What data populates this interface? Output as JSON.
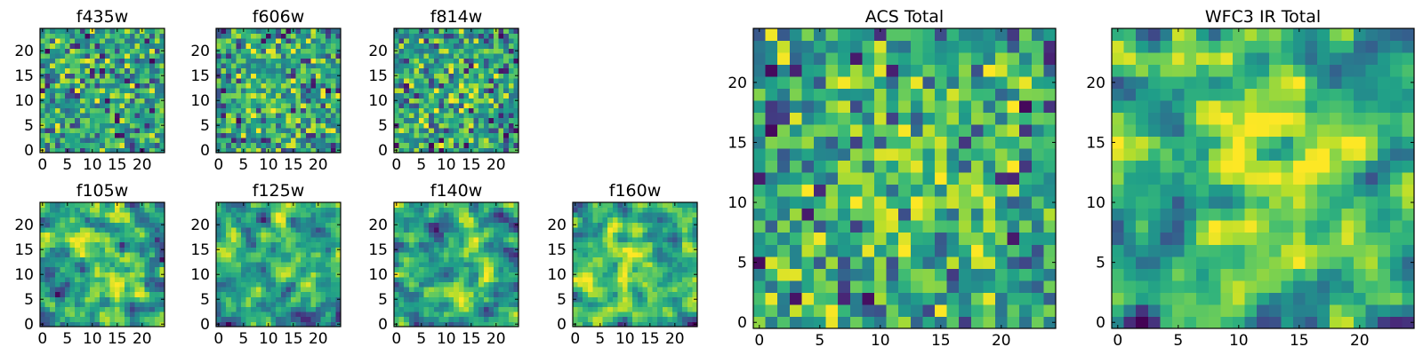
{
  "figure": {
    "colormap": "viridis",
    "colors": {
      "low": "#440154",
      "mid": "#21918c",
      "high": "#fde725",
      "frame": "#000000",
      "background": "#ffffff"
    }
  },
  "chart_data": [
    {
      "type": "heatmap",
      "title": "f435w",
      "grid_size": [
        25,
        25
      ],
      "xlim": [
        -0.5,
        24.5
      ],
      "ylim": [
        -0.5,
        24.5
      ],
      "xticks": [
        0,
        5,
        10,
        15,
        20
      ],
      "yticks": [
        0,
        5,
        10,
        15,
        20
      ],
      "value_range": [
        0,
        1
      ],
      "texture": "noisy",
      "center_brightness": 0.05,
      "seed": 11
    },
    {
      "type": "heatmap",
      "title": "f606w",
      "grid_size": [
        25,
        25
      ],
      "xlim": [
        -0.5,
        24.5
      ],
      "ylim": [
        -0.5,
        24.5
      ],
      "xticks": [
        0,
        5,
        10,
        15,
        20
      ],
      "yticks": [
        0,
        5,
        10,
        15,
        20
      ],
      "value_range": [
        0,
        1
      ],
      "texture": "noisy",
      "center_brightness": 0.1,
      "seed": 23
    },
    {
      "type": "heatmap",
      "title": "f814w",
      "grid_size": [
        25,
        25
      ],
      "xlim": [
        -0.5,
        24.5
      ],
      "ylim": [
        -0.5,
        24.5
      ],
      "xticks": [
        0,
        5,
        10,
        15,
        20
      ],
      "yticks": [
        0,
        5,
        10,
        15,
        20
      ],
      "value_range": [
        0,
        1
      ],
      "texture": "noisy",
      "center_brightness": 0.1,
      "seed": 37
    },
    {
      "type": "heatmap",
      "title": "f105w",
      "grid_size": [
        25,
        25
      ],
      "xlim": [
        -0.5,
        24.5
      ],
      "ylim": [
        -0.5,
        24.5
      ],
      "xticks": [
        0,
        5,
        10,
        15,
        20
      ],
      "yticks": [
        0,
        5,
        10,
        15,
        20
      ],
      "value_range": [
        0,
        1
      ],
      "texture": "smooth",
      "center_brightness": 0.2,
      "seed": 41
    },
    {
      "type": "heatmap",
      "title": "f125w",
      "grid_size": [
        25,
        25
      ],
      "xlim": [
        -0.5,
        24.5
      ],
      "ylim": [
        -0.5,
        24.5
      ],
      "xticks": [
        0,
        5,
        10,
        15,
        20
      ],
      "yticks": [
        0,
        5,
        10,
        15,
        20
      ],
      "value_range": [
        0,
        1
      ],
      "texture": "smooth",
      "center_brightness": 0.12,
      "seed": 53
    },
    {
      "type": "heatmap",
      "title": "f140w",
      "grid_size": [
        25,
        25
      ],
      "xlim": [
        -0.5,
        24.5
      ],
      "ylim": [
        -0.5,
        24.5
      ],
      "xticks": [
        0,
        5,
        10,
        15,
        20
      ],
      "yticks": [
        0,
        5,
        10,
        15,
        20
      ],
      "value_range": [
        0,
        1
      ],
      "texture": "smooth",
      "center_brightness": 0.18,
      "seed": 67
    },
    {
      "type": "heatmap",
      "title": "f160w",
      "grid_size": [
        25,
        25
      ],
      "xlim": [
        -0.5,
        24.5
      ],
      "ylim": [
        -0.5,
        24.5
      ],
      "xticks": [
        0,
        5,
        10,
        15,
        20
      ],
      "yticks": [
        0,
        5,
        10,
        15,
        20
      ],
      "value_range": [
        0,
        1
      ],
      "texture": "smooth",
      "center_brightness": 0.22,
      "seed": 79
    },
    {
      "type": "heatmap",
      "title": "ACS Total",
      "grid_size": [
        25,
        25
      ],
      "xlim": [
        -0.5,
        24.5
      ],
      "ylim": [
        -0.5,
        24.5
      ],
      "xticks": [
        0,
        5,
        10,
        15,
        20
      ],
      "yticks": [
        0,
        5,
        10,
        15,
        20
      ],
      "value_range": [
        0,
        1
      ],
      "texture": "noisy",
      "center_brightness": 0.2,
      "seed": 97
    },
    {
      "type": "heatmap",
      "title": "WFC3 IR Total",
      "grid_size": [
        25,
        25
      ],
      "xlim": [
        -0.5,
        24.5
      ],
      "ylim": [
        -0.5,
        24.5
      ],
      "xticks": [
        0,
        5,
        10,
        15,
        20
      ],
      "yticks": [
        0,
        5,
        10,
        15,
        20
      ],
      "value_range": [
        0,
        1
      ],
      "texture": "smooth",
      "center_brightness": 0.3,
      "seed": 113
    }
  ]
}
